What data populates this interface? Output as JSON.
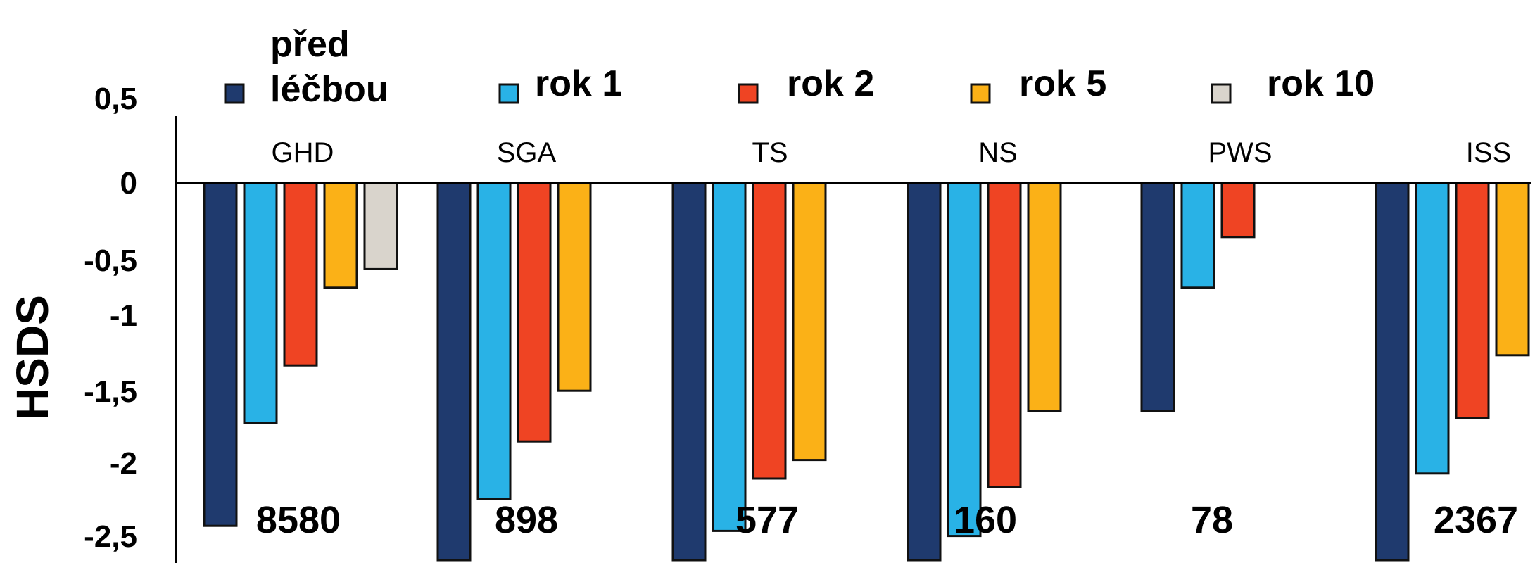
{
  "chart_data": {
    "type": "bar",
    "ylabel": "HSDS",
    "ylim": [
      -2.5,
      0.5
    ],
    "yticks": [
      "0,5",
      "0",
      "-0,5",
      "-1",
      "-1,5",
      "-2",
      "-2,5"
    ],
    "ytick_values": [
      0.5,
      0,
      -0.5,
      -1,
      -1.5,
      -2,
      -2.5
    ],
    "categories": [
      "GHD",
      "SGA",
      "TS",
      "NS",
      "PWS",
      "ISS"
    ],
    "counts": [
      "8580",
      "898",
      "577",
      "160",
      "78",
      "2367"
    ],
    "legend_position": "top",
    "series": [
      {
        "name": "před léčbou",
        "name_lines": [
          "před",
          "léčbou"
        ],
        "color": "#1f3a6e",
        "values": [
          -2.03,
          -2.45,
          -2.57,
          -2.57,
          -1.35,
          -2.26
        ]
      },
      {
        "name": "rok 1",
        "name_lines": [
          "rok 1"
        ],
        "color": "#29b2e6",
        "values": [
          -1.42,
          -1.87,
          -2.06,
          -2.09,
          -0.62,
          -1.72
        ]
      },
      {
        "name": "rok 2",
        "name_lines": [
          "rok 2"
        ],
        "color": "#ef4423",
        "values": [
          -1.08,
          -1.53,
          -1.75,
          -1.8,
          -0.32,
          -1.39
        ]
      },
      {
        "name": "rok 5",
        "name_lines": [
          "rok 5"
        ],
        "color": "#fbb117",
        "values": [
          -0.62,
          -1.23,
          -1.64,
          -1.35,
          null,
          -1.02
        ]
      },
      {
        "name": "rok 10",
        "name_lines": [
          "rok 10"
        ],
        "color": "#d9d4cc",
        "values": [
          -0.51,
          null,
          null,
          null,
          null,
          null
        ]
      }
    ]
  }
}
